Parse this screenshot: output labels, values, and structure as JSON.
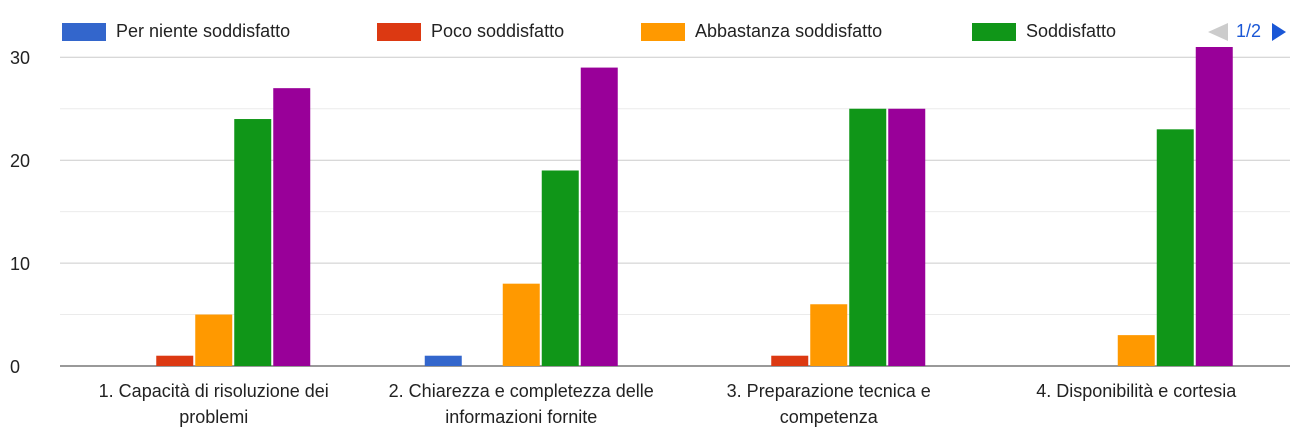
{
  "chart_data": {
    "type": "bar",
    "categories": [
      "1. Capacità di risoluzione dei problemi",
      "2. Chiarezza e completezza delle informazioni fornite",
      "3. Preparazione tecnica e competenza",
      "4. Disponibilità e cortesia"
    ],
    "series": [
      {
        "name": "Per niente soddisfatto",
        "color": "#3366cc",
        "values": [
          0,
          1,
          0,
          0
        ]
      },
      {
        "name": "Poco soddisfatto",
        "color": "#dc3912",
        "values": [
          1,
          0,
          1,
          0
        ]
      },
      {
        "name": "Abbastanza soddisfatto",
        "color": "#ff9900",
        "values": [
          5,
          8,
          6,
          3
        ]
      },
      {
        "name": "Soddisfatto",
        "color": "#109618",
        "values": [
          24,
          19,
          25,
          23
        ]
      },
      {
        "color": "#990099",
        "values": [
          27,
          29,
          25,
          31
        ]
      }
    ],
    "legend_page": "1/2",
    "ylim": [
      0,
      31
    ],
    "yticks": [
      0,
      10,
      20,
      30
    ],
    "minor_yticks": [
      5,
      15,
      25
    ],
    "grid": true
  }
}
